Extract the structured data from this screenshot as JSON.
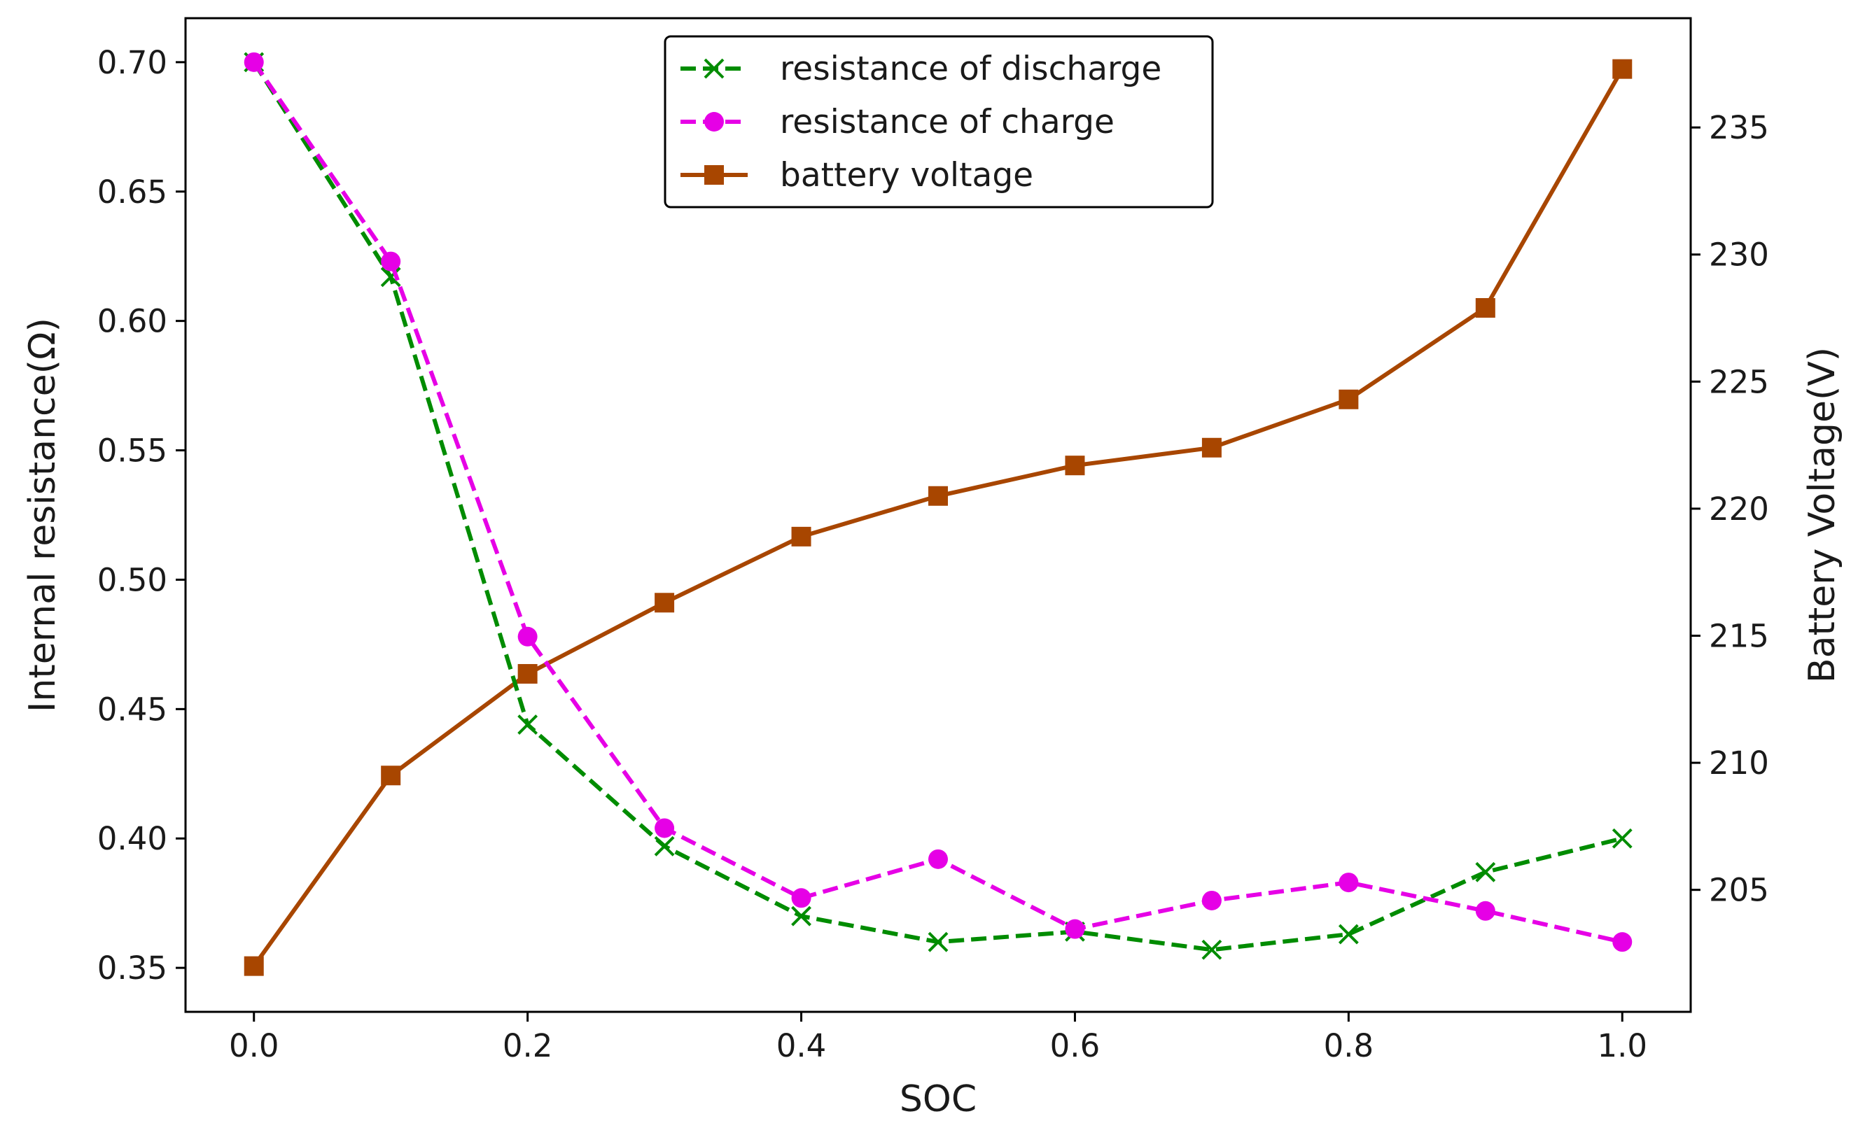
{
  "chart_data": {
    "type": "line",
    "title": "",
    "xlabel": "SOC",
    "ylabel": "Internal resistance(Ω)",
    "y2label": "Battery Voltage(V)",
    "x": [
      0.0,
      0.1,
      0.2,
      0.3,
      0.4,
      0.5,
      0.6,
      0.7,
      0.8,
      0.9,
      1.0
    ],
    "xlim": [
      -0.05,
      1.05
    ],
    "ylim": [
      0.333,
      0.717
    ],
    "y2lim": [
      200.2,
      239.3
    ],
    "xticks": [
      0.0,
      0.2,
      0.4,
      0.6,
      0.8,
      1.0
    ],
    "xtick_labels": [
      "0.0",
      "0.2",
      "0.4",
      "0.6",
      "0.8",
      "1.0"
    ],
    "yticks": [
      0.35,
      0.4,
      0.45,
      0.5,
      0.55,
      0.6,
      0.65,
      0.7
    ],
    "ytick_labels": [
      "0.35",
      "0.40",
      "0.45",
      "0.50",
      "0.55",
      "0.60",
      "0.65",
      "0.70"
    ],
    "y2ticks": [
      205,
      210,
      215,
      220,
      225,
      230,
      235
    ],
    "y2tick_labels": [
      "205",
      "210",
      "215",
      "220",
      "225",
      "230",
      "235"
    ],
    "grid": false,
    "legend_position": "top-center",
    "series": [
      {
        "name": "resistance of discharge",
        "axis": "left",
        "color": "#008c00",
        "line_style": "dashed",
        "marker": "x",
        "values": [
          0.7,
          0.617,
          0.444,
          0.397,
          0.37,
          0.36,
          0.364,
          0.357,
          0.363,
          0.387,
          0.4
        ]
      },
      {
        "name": "resistance of charge",
        "axis": "left",
        "color": "#e600e6",
        "line_style": "dashed",
        "marker": "circle",
        "values": [
          0.7,
          0.623,
          0.478,
          0.404,
          0.377,
          0.392,
          0.365,
          0.376,
          0.383,
          0.372,
          0.36
        ]
      },
      {
        "name": "battery voltage",
        "axis": "right",
        "color": "#a84600",
        "line_style": "solid",
        "marker": "square",
        "values": [
          202.0,
          209.5,
          213.5,
          216.3,
          218.9,
          220.5,
          221.7,
          222.4,
          224.3,
          227.9,
          237.3
        ]
      }
    ]
  }
}
